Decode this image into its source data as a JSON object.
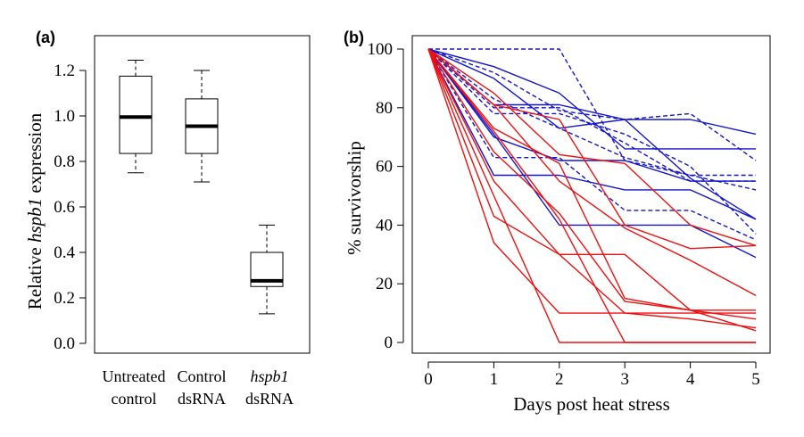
{
  "chart_data": [
    {
      "panel": "(a)",
      "type": "boxplot",
      "ylabel_prefix": "Relative ",
      "ylabel_italic": "hspb1",
      "ylabel_suffix": " expression",
      "ylim": [
        0.0,
        1.3
      ],
      "yticks": [
        "0.0",
        "0.2",
        "0.4",
        "0.6",
        "0.8",
        "1.0",
        "1.2"
      ],
      "categories": [
        {
          "line1": "Untreated",
          "line2": "control",
          "italic": false
        },
        {
          "line1": "Control",
          "line2": "dsRNA",
          "italic": false
        },
        {
          "line1": "hspb1",
          "line2": "dsRNA",
          "italic": true
        }
      ],
      "boxes": [
        {
          "min": 0.75,
          "q1": 0.835,
          "median": 0.995,
          "q3": 1.175,
          "max": 1.245
        },
        {
          "min": 0.71,
          "q1": 0.835,
          "median": 0.955,
          "q3": 1.075,
          "max": 1.2
        },
        {
          "min": 0.13,
          "q1": 0.25,
          "median": 0.275,
          "q3": 0.4,
          "max": 0.52
        }
      ]
    },
    {
      "panel": "(b)",
      "type": "line",
      "xlabel": "Days post heat stress",
      "ylabel": "% survivorship",
      "xlim": [
        0,
        5
      ],
      "ylim": [
        0,
        100
      ],
      "xticks": [
        "0",
        "1",
        "2",
        "3",
        "4",
        "5"
      ],
      "yticks": [
        "0",
        "20",
        "40",
        "60",
        "80",
        "100"
      ],
      "x": [
        0,
        1,
        2,
        3,
        4,
        5
      ],
      "series": [
        {
          "group": "untreated control",
          "color": "#1414cc",
          "style": "dashed",
          "values": [
            100,
            100,
            100,
            62,
            57,
            57
          ]
        },
        {
          "group": "untreated control",
          "color": "#1414cc",
          "style": "dashed",
          "values": [
            100,
            92,
            79,
            76,
            78,
            62
          ]
        },
        {
          "group": "untreated control",
          "color": "#1414cc",
          "style": "dashed",
          "values": [
            100,
            78,
            78,
            71,
            60,
            37
          ]
        },
        {
          "group": "untreated control",
          "color": "#1414cc",
          "style": "dashed",
          "values": [
            100,
            83,
            73,
            63,
            57,
            52
          ]
        },
        {
          "group": "untreated control",
          "color": "#1414cc",
          "style": "dashed",
          "values": [
            100,
            63,
            63,
            45,
            45,
            35
          ]
        },
        {
          "group": "untreated control",
          "color": "#1414cc",
          "style": "dashed",
          "values": [
            100,
            80,
            80,
            68,
            55,
            55
          ]
        },
        {
          "group": "control dsRNA",
          "color": "#1414cc",
          "style": "solid",
          "values": [
            100,
            94,
            85,
            66,
            66,
            66
          ]
        },
        {
          "group": "control dsRNA",
          "color": "#1414cc",
          "style": "solid",
          "values": [
            100,
            90,
            73,
            76,
            76,
            71
          ]
        },
        {
          "group": "control dsRNA",
          "color": "#1414cc",
          "style": "solid",
          "values": [
            100,
            81,
            81,
            76,
            56,
            42
          ]
        },
        {
          "group": "control dsRNA",
          "color": "#1414cc",
          "style": "solid",
          "values": [
            100,
            70,
            62,
            62,
            55,
            55
          ]
        },
        {
          "group": "control dsRNA",
          "color": "#1414cc",
          "style": "solid",
          "values": [
            100,
            57,
            57,
            52,
            52,
            42
          ]
        },
        {
          "group": "control dsRNA",
          "color": "#1414cc",
          "style": "solid",
          "values": [
            100,
            71,
            40,
            40,
            40,
            29
          ]
        },
        {
          "group": "hspb1 dsRNA",
          "color": "#ee1111",
          "style": "solid",
          "values": [
            100,
            85,
            64,
            61,
            40,
            33
          ]
        },
        {
          "group": "hspb1 dsRNA",
          "color": "#ee1111",
          "style": "solid",
          "values": [
            100,
            81,
            76,
            40,
            32,
            33
          ]
        },
        {
          "group": "hspb1 dsRNA",
          "color": "#ee1111",
          "style": "solid",
          "values": [
            100,
            81,
            55,
            39,
            28,
            16
          ]
        },
        {
          "group": "hspb1 dsRNA",
          "color": "#ee1111",
          "style": "solid",
          "values": [
            100,
            73,
            61,
            15,
            11,
            11
          ]
        },
        {
          "group": "hspb1 dsRNA",
          "color": "#ee1111",
          "style": "solid",
          "values": [
            100,
            65,
            44,
            14,
            11,
            8
          ]
        },
        {
          "group": "hspb1 dsRNA",
          "color": "#ee1111",
          "style": "solid",
          "values": [
            100,
            55,
            30,
            30,
            11,
            4
          ]
        },
        {
          "group": "hspb1 dsRNA",
          "color": "#ee1111",
          "style": "solid",
          "values": [
            100,
            43,
            30,
            10,
            8,
            5
          ]
        },
        {
          "group": "hspb1 dsRNA",
          "color": "#ee1111",
          "style": "solid",
          "values": [
            100,
            34,
            10,
            10,
            10,
            10
          ]
        },
        {
          "group": "hspb1 dsRNA",
          "color": "#ee1111",
          "style": "solid",
          "values": [
            100,
            50,
            0,
            0,
            0,
            0
          ]
        },
        {
          "group": "hspb1 dsRNA",
          "color": "#ee1111",
          "style": "solid",
          "values": [
            100,
            72,
            42,
            0,
            0,
            0
          ]
        }
      ]
    }
  ]
}
